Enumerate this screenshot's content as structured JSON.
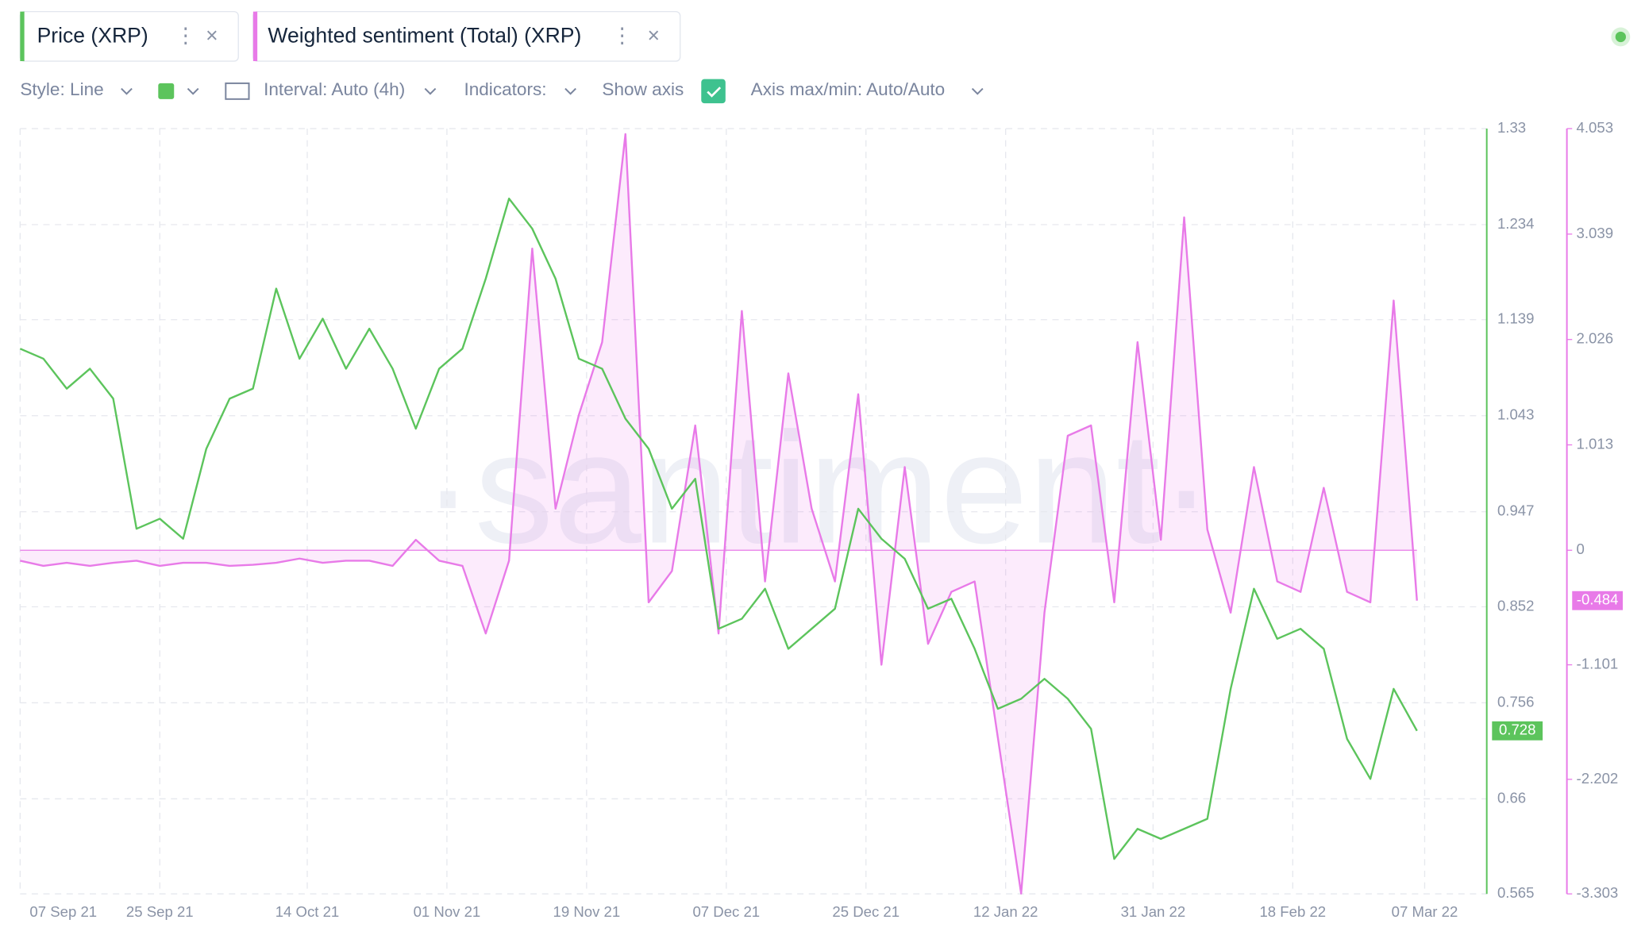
{
  "toolbar": {
    "style": "Style: Line",
    "interval": "Interval: Auto (4h)",
    "indicators": "Indicators:",
    "show_axis": "Show axis",
    "axis_range": "Axis max/min: Auto/Auto"
  },
  "watermark": "·santiment·",
  "chart_data": {
    "type": "line",
    "x": [
      "2021-09-07",
      "2021-09-10",
      "2021-09-13",
      "2021-09-16",
      "2021-09-19",
      "2021-09-22",
      "2021-09-25",
      "2021-09-28",
      "2021-10-01",
      "2021-10-04",
      "2021-10-07",
      "2021-10-10",
      "2021-10-13",
      "2021-10-16",
      "2021-10-19",
      "2021-10-22",
      "2021-10-25",
      "2021-10-28",
      "2021-10-31",
      "2021-11-03",
      "2021-11-06",
      "2021-11-09",
      "2021-11-12",
      "2021-11-15",
      "2021-11-18",
      "2021-11-21",
      "2021-11-24",
      "2021-11-27",
      "2021-11-30",
      "2021-12-03",
      "2021-12-06",
      "2021-12-09",
      "2021-12-12",
      "2021-12-15",
      "2021-12-18",
      "2021-12-21",
      "2021-12-24",
      "2021-12-27",
      "2021-12-30",
      "2022-01-02",
      "2022-01-05",
      "2022-01-08",
      "2022-01-11",
      "2022-01-14",
      "2022-01-17",
      "2022-01-20",
      "2022-01-23",
      "2022-01-26",
      "2022-01-29",
      "2022-02-01",
      "2022-02-04",
      "2022-02-07",
      "2022-02-10",
      "2022-02-13",
      "2022-02-16",
      "2022-02-19",
      "2022-02-22",
      "2022-02-25",
      "2022-02-28",
      "2022-03-03",
      "2022-03-06"
    ],
    "xlim": [
      "2021-09-07",
      "2022-03-15"
    ],
    "xticks": [
      {
        "value": "2021-09-07",
        "label": "07 Sep 21"
      },
      {
        "value": "2021-09-25",
        "label": "25 Sep 21"
      },
      {
        "value": "2021-10-14",
        "label": "14 Oct 21"
      },
      {
        "value": "2021-11-01",
        "label": "01 Nov 21"
      },
      {
        "value": "2021-11-19",
        "label": "19 Nov 21"
      },
      {
        "value": "2021-12-07",
        "label": "07 Dec 21"
      },
      {
        "value": "2021-12-25",
        "label": "25 Dec 21"
      },
      {
        "value": "2022-01-12",
        "label": "12 Jan 22"
      },
      {
        "value": "2022-01-31",
        "label": "31 Jan 22"
      },
      {
        "value": "2022-02-18",
        "label": "18 Feb 22"
      },
      {
        "value": "2022-03-07",
        "label": "07 Mar 22"
      }
    ],
    "ylim": [
      0.565,
      1.33
    ],
    "yticks": [
      1.33,
      1.234,
      1.139,
      1.043,
      0.947,
      0.852,
      0.756,
      0.66,
      0.565
    ],
    "y2lim": [
      -3.303,
      4.053
    ],
    "y2ticks": [
      4.053,
      3.039,
      2.026,
      1.013,
      0,
      -1.101,
      -2.202,
      -3.303
    ],
    "grid": true,
    "series": [
      {
        "name": "Price (XRP)",
        "color": "#5cc45c",
        "values": [
          1.11,
          1.1,
          1.07,
          1.09,
          1.06,
          0.93,
          0.94,
          0.92,
          1.01,
          1.06,
          1.07,
          1.17,
          1.1,
          1.14,
          1.09,
          1.13,
          1.09,
          1.03,
          1.09,
          1.11,
          1.18,
          1.26,
          1.23,
          1.18,
          1.1,
          1.09,
          1.04,
          1.01,
          0.95,
          0.98,
          0.83,
          0.84,
          0.87,
          0.81,
          0.83,
          0.85,
          0.95,
          0.92,
          0.9,
          0.85,
          0.86,
          0.81,
          0.75,
          0.76,
          0.78,
          0.76,
          0.73,
          0.6,
          0.63,
          0.62,
          0.63,
          0.64,
          0.77,
          0.87,
          0.82,
          0.83,
          0.81,
          0.72,
          0.68,
          0.77,
          0.728
        ]
      },
      {
        "name": "Weighted sentiment (Total) (XRP)",
        "color": "#e87ae8",
        "axis": "y2",
        "values": [
          -0.1,
          -0.15,
          -0.12,
          -0.15,
          -0.12,
          -0.1,
          -0.15,
          -0.12,
          -0.12,
          -0.15,
          -0.14,
          -0.12,
          -0.08,
          -0.12,
          -0.1,
          -0.1,
          -0.15,
          0.1,
          -0.1,
          -0.15,
          -0.8,
          -0.1,
          2.9,
          0.4,
          1.3,
          2.0,
          4.0,
          -0.5,
          -0.2,
          1.2,
          -0.8,
          2.3,
          -0.3,
          1.7,
          0.4,
          -0.3,
          1.5,
          -1.1,
          0.8,
          -0.9,
          -0.4,
          -0.3,
          -1.8,
          -3.3,
          -0.6,
          1.1,
          1.2,
          -0.5,
          2.0,
          0.1,
          3.2,
          0.2,
          -0.6,
          0.8,
          -0.3,
          -0.4,
          0.6,
          -0.4,
          -0.5,
          2.4,
          -0.484
        ]
      }
    ]
  }
}
